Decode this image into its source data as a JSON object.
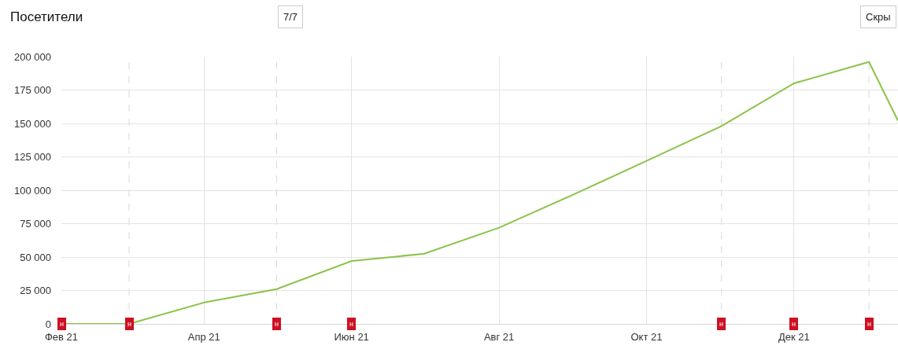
{
  "chart_data": {
    "type": "line",
    "title": "Посетители",
    "x": [
      "2021-02",
      "2021-03",
      "2021-04",
      "2021-05",
      "2021-06",
      "2021-07",
      "2021-08",
      "2021-09",
      "2021-10",
      "2021-11",
      "2021-12",
      "2022-01",
      "2022-01-13"
    ],
    "series": [
      {
        "color": "#8bc34a",
        "values": [
          0,
          0,
          16000,
          26000,
          47000,
          52500,
          72000,
          97000,
          122000,
          148000,
          180000,
          196000,
          152000
        ]
      }
    ],
    "xlim": [
      "2021-02",
      "2022-01-13"
    ],
    "xticks": [
      {
        "value": "2021-02",
        "label": "Фев 21"
      },
      {
        "value": "2021-04",
        "label": "Апр 21"
      },
      {
        "value": "2021-06",
        "label": "Июн 21"
      },
      {
        "value": "2021-08",
        "label": "Авг 21"
      },
      {
        "value": "2021-10",
        "label": "Окт 21"
      },
      {
        "value": "2021-12",
        "label": "Дек 21"
      }
    ],
    "ylim": [
      0,
      200000
    ],
    "yticks": [
      0,
      {
        "value": 25000,
        "label": "25 000"
      },
      {
        "value": 50000,
        "label": "50 000"
      },
      {
        "value": 75000,
        "label": "75 000"
      },
      {
        "value": 100000,
        "label": "100 000"
      },
      {
        "value": 125000,
        "label": "125 000"
      },
      {
        "value": 150000,
        "label": "150 000"
      },
      {
        "value": 175000,
        "label": "175 000"
      },
      {
        "value": 200000,
        "label": "200 000"
      }
    ],
    "grid": true,
    "ref_lines": [
      {
        "axis": "x",
        "value": "2021-03",
        "color": "#d9d9d9",
        "line_style": "dashed"
      },
      {
        "axis": "x",
        "value": "2021-05",
        "color": "#d9d9d9",
        "line_style": "dashed"
      },
      {
        "axis": "x",
        "value": "2021-11",
        "color": "#d9d9d9",
        "line_style": "dashed"
      },
      {
        "axis": "x",
        "value": "2022-01",
        "color": "#d9d9d9",
        "line_style": "dashed"
      }
    ],
    "annotations": [
      "7/7",
      "Скры",
      {
        "text": "н",
        "x": "2021-02",
        "y": 0
      },
      {
        "text": "н",
        "x": "2021-03",
        "y": 0
      },
      {
        "text": "н",
        "x": "2021-05",
        "y": 0
      },
      {
        "text": "н",
        "x": "2021-06",
        "y": 0
      },
      {
        "text": "н",
        "x": "2021-11",
        "y": 0
      },
      {
        "text": "н",
        "x": "2021-12",
        "y": 0
      },
      {
        "text": "н",
        "x": "2022-01",
        "y": 0
      }
    ]
  }
}
